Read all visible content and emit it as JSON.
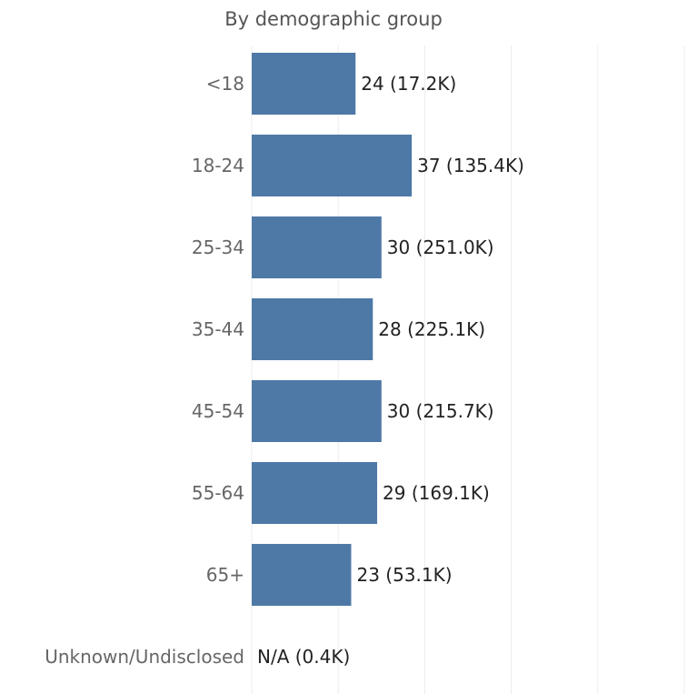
{
  "chart_data": {
    "type": "bar",
    "orientation": "horizontal",
    "title": "By demographic group",
    "categories": [
      "<18",
      "18-24",
      "25-34",
      "35-44",
      "45-54",
      "55-64",
      "65+",
      "Unknown/Undisclosed"
    ],
    "values": [
      24,
      37,
      30,
      28,
      30,
      29,
      23,
      null
    ],
    "data_labels": [
      "24 (17.2K)",
      "37 (135.4K)",
      "30 (251.0K)",
      "28 (225.1K)",
      "30 (215.7K)",
      "29 (169.1K)",
      "23 (53.1K)",
      "N/A (0.4K)"
    ],
    "xlim": [
      0,
      100
    ],
    "grid": true,
    "bar_color": "#4E79A7"
  }
}
